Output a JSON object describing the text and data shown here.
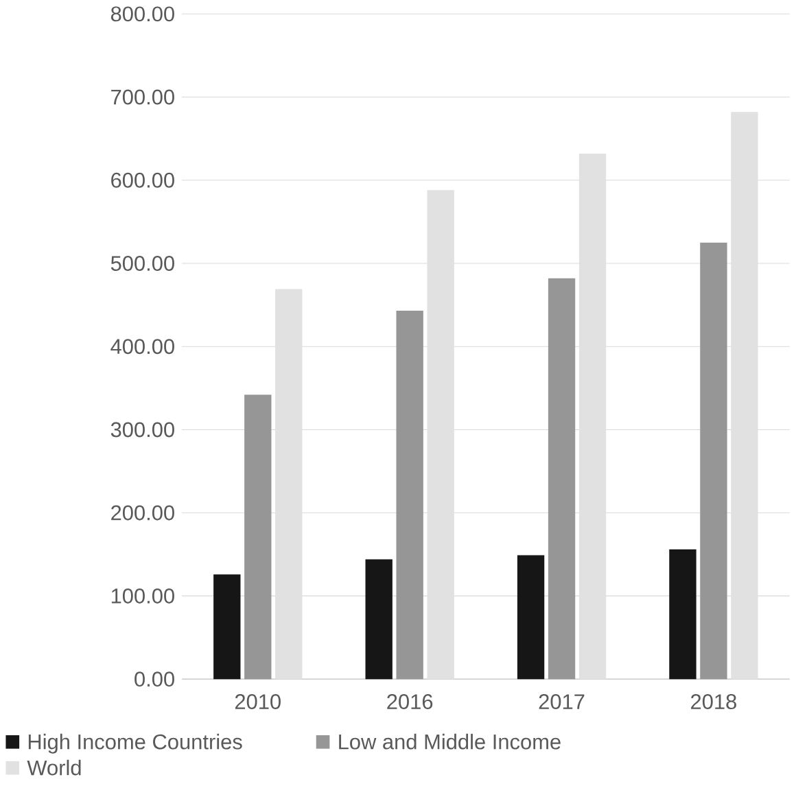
{
  "chart_data": {
    "type": "bar",
    "categories": [
      "2010",
      "2016",
      "2017",
      "2018"
    ],
    "series": [
      {
        "name": "High Income Countries",
        "color": "#161616",
        "values": [
          126,
          144,
          149,
          156
        ]
      },
      {
        "name": "Low and Middle Income",
        "color": "#969696",
        "values": [
          342,
          443,
          482,
          525
        ]
      },
      {
        "name": "World",
        "color": "#e1e1e1",
        "values": [
          469,
          588,
          632,
          682
        ]
      }
    ],
    "ylim": [
      0,
      800
    ],
    "yticks": [
      {
        "value": 0,
        "label": "0.00"
      },
      {
        "value": 100,
        "label": "100.00"
      },
      {
        "value": 200,
        "label": "200.00"
      },
      {
        "value": 300,
        "label": "300.00"
      },
      {
        "value": 400,
        "label": "400.00"
      },
      {
        "value": 500,
        "label": "500.00"
      },
      {
        "value": 600,
        "label": "600.00"
      },
      {
        "value": 700,
        "label": "700.00"
      },
      {
        "value": 800,
        "label": "800.00"
      }
    ],
    "grid": "y",
    "legend": "bottom"
  }
}
